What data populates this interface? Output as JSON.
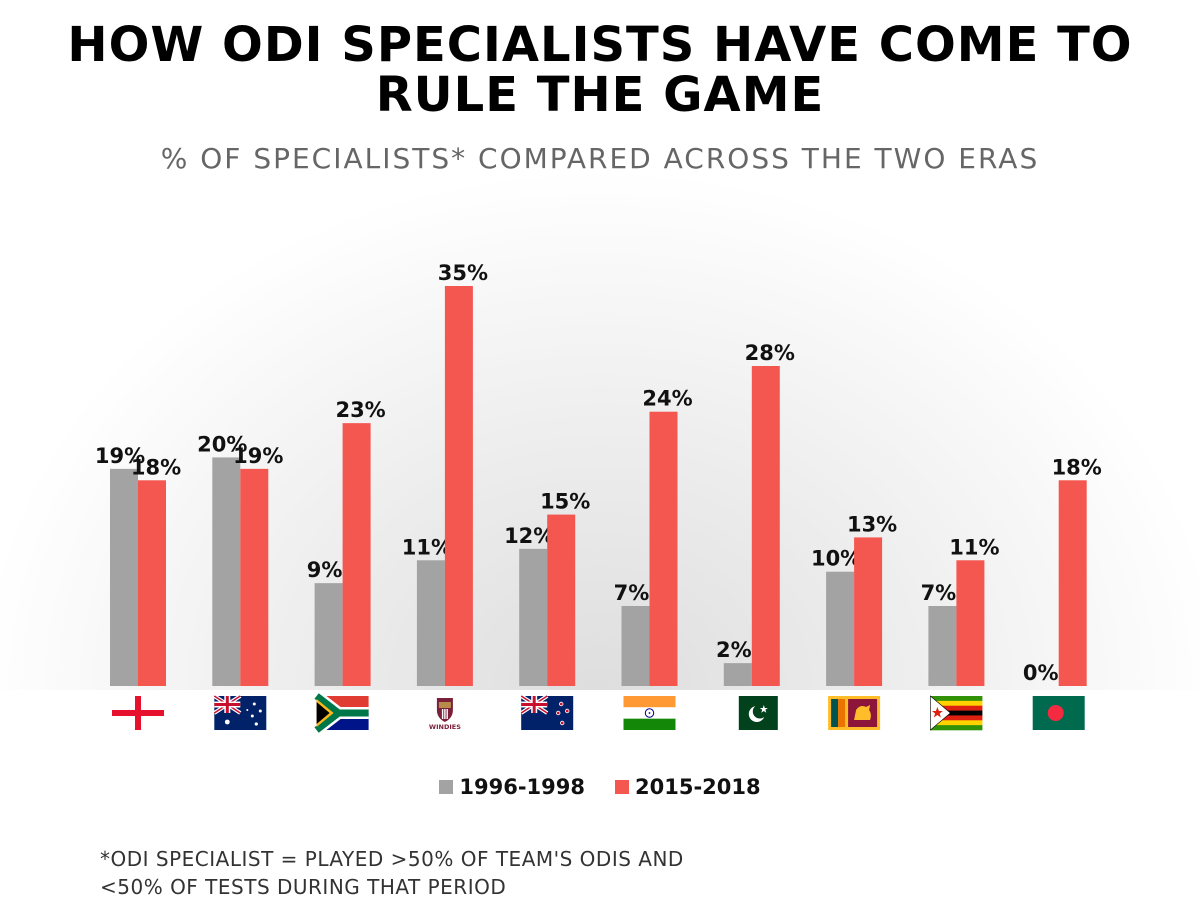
{
  "title": "HOW ODI SPECIALISTS HAVE COME TO RULE THE GAME",
  "subtitle": "% OF SPECIALISTS* COMPARED ACROSS THE TWO ERAS",
  "footnote_line1": "*ODI SPECIALIST = PLAYED >50% OF TEAM'S ODIS AND",
  "footnote_line2": "<50% OF TESTS DURING THAT PERIOD",
  "colors": {
    "era1": "#a3a3a3",
    "era2": "#f4574f",
    "glow": "#e2e2e2"
  },
  "chart_data": {
    "type": "bar",
    "categories": [
      "england-flag",
      "australia-flag",
      "south-africa-flag",
      "windies-logo",
      "new-zealand-flag",
      "india-flag",
      "pakistan-flag",
      "sri-lanka-flag",
      "zimbabwe-flag",
      "bangladesh-flag"
    ],
    "series": [
      {
        "name": "1996-1998",
        "values": [
          19,
          20,
          9,
          11,
          12,
          7,
          2,
          10,
          7,
          0
        ],
        "labels": [
          "19%",
          "20%",
          "9%",
          "11%",
          "12%",
          "7%",
          "2%",
          "10%",
          "7%",
          "0%"
        ]
      },
      {
        "name": "2015-2018",
        "values": [
          18,
          19,
          23,
          35,
          15,
          24,
          28,
          13,
          11,
          18
        ],
        "labels": [
          "18%",
          "19%",
          "23%",
          "35%",
          "15%",
          "24%",
          "28%",
          "13%",
          "11%",
          "18%"
        ]
      }
    ],
    "windies_text": "WINDIES",
    "ylim": [
      0,
      35
    ],
    "grid": false,
    "legend": "bottom"
  }
}
